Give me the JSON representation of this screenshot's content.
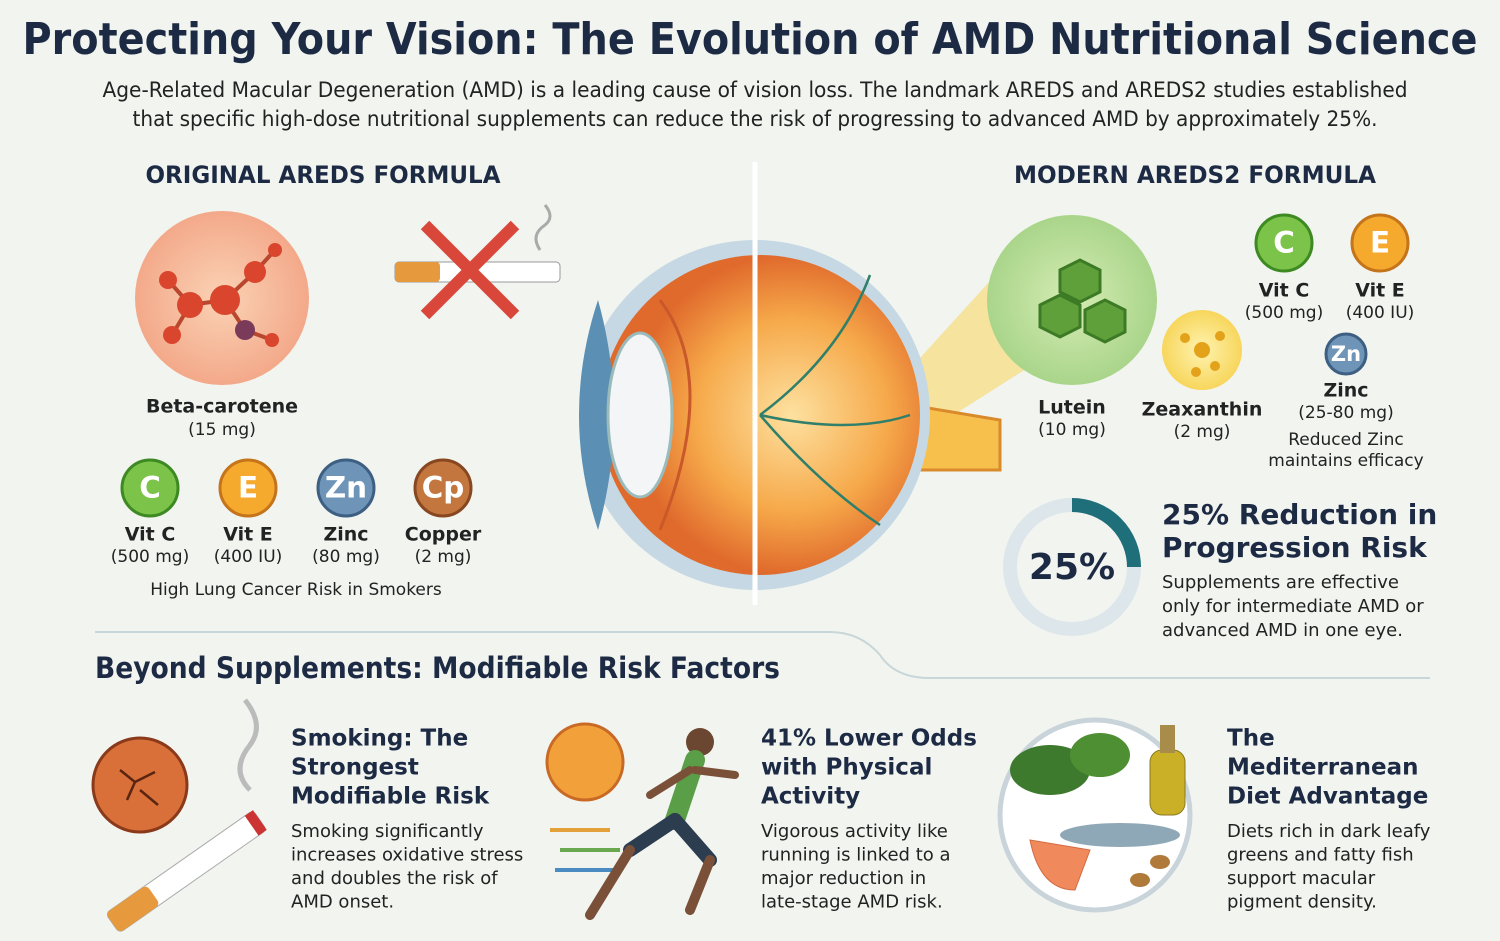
{
  "header": {
    "title": "Protecting Your Vision: The Evolution of AMD Nutritional Science",
    "intro": [
      "Age-Related Macular Degeneration (AMD) is a leading cause of vision loss. The landmark AREDS and AREDS2 studies established",
      "that specific high-dose nutritional supplements can reduce the risk of progressing to advanced AMD by approximately 25%."
    ]
  },
  "original": {
    "heading": "ORIGINAL AREDS FORMULA",
    "beta": {
      "name": "Beta-carotene",
      "dose": "(15 mg)"
    },
    "nutrients": [
      {
        "symbol": "C",
        "name": "Vit C",
        "dose": "(500 mg)"
      },
      {
        "symbol": "E",
        "name": "Vit E",
        "dose": "(400 IU)"
      },
      {
        "symbol": "Zn",
        "name": "Zinc",
        "dose": "(80 mg)"
      },
      {
        "symbol": "Cp",
        "name": "Copper",
        "dose": "(2 mg)"
      }
    ],
    "note": "High Lung Cancer Risk in Smokers"
  },
  "modern": {
    "heading": "MODERN AREDS2 FORMULA",
    "lutein": {
      "name": "Lutein",
      "dose": "(10 mg)"
    },
    "zeaxanthin": {
      "name": "Zeaxanthin",
      "dose": "(2 mg)"
    },
    "nutrients": [
      {
        "symbol": "C",
        "name": "Vit C",
        "dose": "(500 mg)"
      },
      {
        "symbol": "E",
        "name": "Vit E",
        "dose": "(400 IU)"
      },
      {
        "symbol": "Zn",
        "name": "Zinc",
        "dose": "(25-80 mg)"
      }
    ],
    "note": [
      "Reduced Zinc",
      "maintains efficacy"
    ]
  },
  "stat": {
    "ring": {
      "value": 25,
      "label": "25%"
    },
    "heading": [
      "25% Reduction in",
      "Progression Risk"
    ],
    "text": [
      "Supplements are effective",
      "only for intermediate AMD or",
      "advanced AMD in one eye."
    ]
  },
  "factors": {
    "heading": "Beyond Supplements: Modifiable Risk Factors",
    "items": [
      {
        "title": [
          "Smoking: The",
          "Strongest",
          "Modifiable Risk"
        ],
        "text": [
          "Smoking significantly",
          "increases oxidative stress",
          "and doubles the risk of",
          "AMD onset."
        ]
      },
      {
        "title": [
          "41% Lower Odds",
          "with Physical",
          "Activity"
        ],
        "text": [
          "Vigorous activity like",
          "running is linked to a",
          "major reduction in",
          "late-stage AMD risk."
        ]
      },
      {
        "title": [
          "The",
          "Mediterranean",
          "Diet Advantage"
        ],
        "text": [
          "Diets rich in dark leafy",
          "greens and fatty fish",
          "support macular",
          "pigment density."
        ]
      }
    ]
  }
}
